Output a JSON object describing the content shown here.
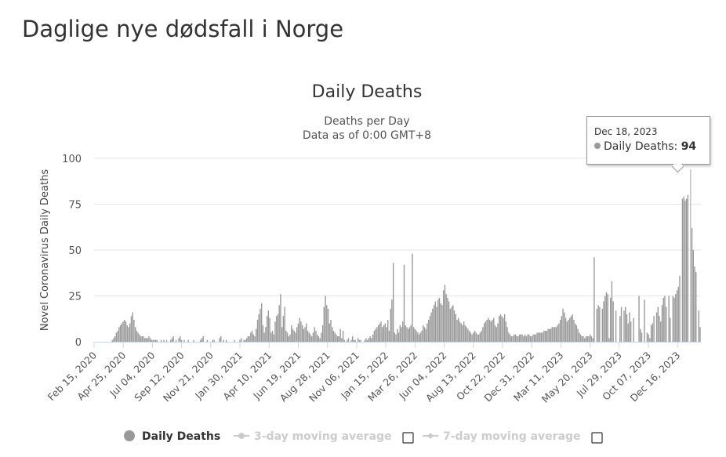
{
  "page": {
    "title": "Daglige nye dødsfall i Norge"
  },
  "chart_data": {
    "type": "bar",
    "title": "Daily Deaths",
    "subtitle_line1": "Deaths per Day",
    "subtitle_line2": "Data as of 0:00 GMT+8",
    "ylabel": "Novel Coronavirus Daily Deaths",
    "xlabel": "",
    "ylim": [
      0,
      100
    ],
    "yticks": [
      0,
      25,
      50,
      75,
      100
    ],
    "x_start": "Feb 15, 2020",
    "x_end": "Feb 10, 2024",
    "x_tick_labels": [
      "Feb 15, 2020",
      "Apr 25, 2020",
      "Jul 04, 2020",
      "Sep 12, 2020",
      "Nov 21, 2020",
      "Jan 30, 2021",
      "Apr 10, 2021",
      "Jun 19, 2021",
      "Aug 28, 2021",
      "Nov 06, 2021",
      "Jan 15, 2022",
      "Mar 26, 2022",
      "Jun 04, 2022",
      "Aug 13, 2022",
      "Oct 22, 2022",
      "Dec 31, 2022",
      "Mar 11, 2023",
      "May 20, 2023",
      "Jul 29, 2023",
      "Oct 07, 2023",
      "Dec 16, 2023"
    ],
    "grid": true,
    "legend_position": "bottom",
    "series_color": "#999999",
    "inactive_color": "#cccccc",
    "series": [
      {
        "name": "Daily Deaths",
        "active": true,
        "values": [
          0,
          0,
          0,
          0,
          0,
          0,
          0,
          0,
          0,
          0,
          0,
          0,
          0,
          1,
          2,
          3,
          5,
          6,
          8,
          9,
          10,
          11,
          12,
          11,
          9,
          8,
          10,
          14,
          16,
          12,
          8,
          6,
          5,
          4,
          3,
          3,
          3,
          2,
          2,
          2,
          3,
          2,
          1,
          1,
          1,
          1,
          1,
          0,
          0,
          1,
          0,
          1,
          0,
          1,
          0,
          0,
          1,
          2,
          3,
          0,
          1,
          0,
          2,
          3,
          1,
          0,
          1,
          0,
          0,
          1,
          0,
          0,
          0,
          1,
          0,
          0,
          0,
          0,
          1,
          2,
          3,
          0,
          0,
          1,
          0,
          0,
          0,
          1,
          1,
          0,
          0,
          0,
          2,
          3,
          0,
          1,
          0,
          1,
          0,
          0,
          0,
          0,
          0,
          1,
          0,
          0,
          0,
          1,
          2,
          0,
          1,
          1,
          2,
          3,
          3,
          5,
          6,
          4,
          3,
          7,
          12,
          15,
          18,
          21,
          9,
          5,
          8,
          14,
          17,
          13,
          5,
          6,
          4,
          11,
          14,
          15,
          20,
          26,
          8,
          14,
          19,
          6,
          5,
          3,
          4,
          9,
          7,
          6,
          5,
          8,
          10,
          13,
          11,
          9,
          7,
          8,
          10,
          6,
          5,
          4,
          3,
          5,
          8,
          6,
          4,
          3,
          2,
          5,
          9,
          19,
          25,
          20,
          18,
          10,
          12,
          8,
          6,
          5,
          4,
          3,
          3,
          7,
          2,
          6,
          1,
          0,
          1,
          2,
          0,
          1,
          3,
          1,
          1,
          0,
          2,
          1,
          1,
          0,
          0,
          1,
          2,
          1,
          2,
          3,
          2,
          4,
          6,
          7,
          8,
          9,
          10,
          11,
          8,
          9,
          10,
          8,
          12,
          6,
          18,
          23,
          43,
          5,
          4,
          7,
          5,
          9,
          8,
          11,
          42,
          9,
          8,
          7,
          8,
          9,
          48,
          8,
          7,
          6,
          5,
          4,
          5,
          6,
          9,
          8,
          7,
          10,
          12,
          14,
          16,
          18,
          20,
          22,
          19,
          23,
          24,
          21,
          20,
          28,
          31,
          26,
          24,
          22,
          18,
          19,
          20,
          17,
          15,
          12,
          13,
          11,
          10,
          9,
          11,
          9,
          8,
          7,
          6,
          5,
          4,
          5,
          6,
          5,
          4,
          4,
          5,
          6,
          8,
          10,
          11,
          12,
          13,
          12,
          11,
          12,
          13,
          9,
          8,
          10,
          14,
          15,
          14,
          13,
          15,
          11,
          8,
          5,
          4,
          3,
          3,
          4,
          4,
          3,
          3,
          4,
          4,
          4,
          3,
          4,
          3,
          4,
          4,
          3,
          3,
          4,
          4,
          4,
          5,
          5,
          5,
          5,
          5,
          6,
          6,
          6,
          7,
          7,
          7,
          8,
          8,
          8,
          8,
          9,
          10,
          12,
          14,
          18,
          16,
          13,
          11,
          12,
          13,
          14,
          15,
          12,
          10,
          9,
          7,
          5,
          4,
          3,
          3,
          2,
          3,
          3,
          3,
          4,
          3,
          2,
          46,
          0,
          18,
          20,
          19,
          0,
          18,
          22,
          25,
          27,
          26,
          2,
          24,
          33,
          22,
          0,
          17,
          0,
          0,
          14,
          19,
          0,
          17,
          19,
          15,
          10,
          16,
          11,
          0,
          13,
          0,
          0,
          0,
          25,
          7,
          5,
          0,
          23,
          0,
          5,
          4,
          2,
          9,
          10,
          14,
          0,
          16,
          19,
          14,
          11,
          20,
          24,
          25,
          19,
          0,
          25,
          13,
          0,
          25,
          24,
          26,
          28,
          30,
          36,
          0,
          78,
          79,
          77,
          78,
          80,
          0,
          94,
          62,
          50,
          41,
          38,
          0,
          17,
          8
        ]
      },
      {
        "name": "3-day moving average",
        "active": false
      },
      {
        "name": "7-day moving average",
        "active": false
      }
    ],
    "tooltip": {
      "date": "Dec 18, 2023",
      "series_name": "Daily Deaths",
      "value": 94
    }
  }
}
